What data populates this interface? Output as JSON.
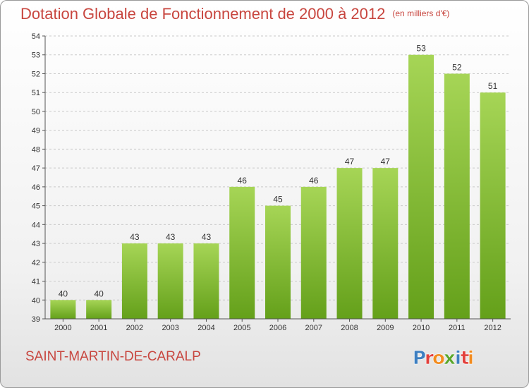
{
  "header": {
    "title": "Dotation Globale de Fonctionnement de 2000 à 2012",
    "subtitle": "(en milliers d'€)"
  },
  "commune": "SAINT-MARTIN-DE-CARALP",
  "logo": {
    "text": "Proxiti",
    "colors": [
      "#3d7fc1",
      "#e2403c",
      "#f28c1f",
      "#5aa62b"
    ]
  },
  "colors": {
    "bar_top": "#a6d556",
    "bar_bottom": "#64a01a",
    "title": "#c8463f"
  },
  "chart_data": {
    "type": "bar",
    "title": "Dotation Globale de Fonctionnement de 2000 à 2012",
    "subtitle": "(en milliers d'€)",
    "categories": [
      "2000",
      "2001",
      "2002",
      "2003",
      "2004",
      "2005",
      "2006",
      "2007",
      "2008",
      "2009",
      "2010",
      "2011",
      "2012"
    ],
    "values": [
      40,
      40,
      43,
      43,
      43,
      46,
      45,
      46,
      47,
      47,
      53,
      52,
      51
    ],
    "ylim": [
      39,
      54
    ],
    "yticks": [
      39,
      40,
      41,
      42,
      43,
      44,
      45,
      46,
      47,
      48,
      49,
      50,
      51,
      52,
      53,
      54
    ],
    "grid": true,
    "legend": "none"
  }
}
